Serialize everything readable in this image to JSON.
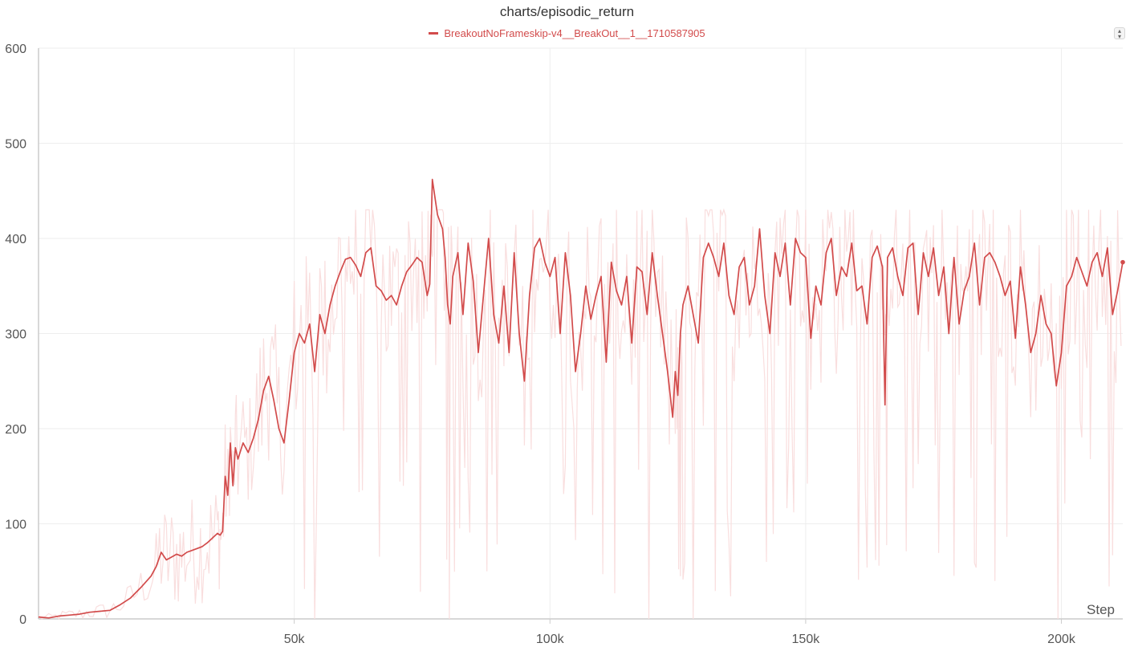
{
  "chart_data": {
    "type": "line",
    "title": "charts/episodic_return",
    "xlabel": "Step",
    "ylabel": "",
    "xlim": [
      0,
      212000
    ],
    "ylim": [
      0,
      600
    ],
    "x_ticks": [
      50000,
      100000,
      150000,
      200000
    ],
    "x_tick_labels": [
      "50k",
      "100k",
      "150k",
      "200k"
    ],
    "y_ticks": [
      0,
      100,
      200,
      300,
      400,
      500,
      600
    ],
    "y_tick_labels": [
      "0",
      "100",
      "200",
      "300",
      "400",
      "500",
      "600"
    ],
    "grid": true,
    "legend_position": "top-center",
    "series": [
      {
        "name": "BreakoutNoFrameskip-v4__BreakOut__1__1710587905",
        "color": "#d24b4b",
        "raw_color": "#f9dede",
        "smoothed": {
          "x": [
            0,
            2000,
            4000,
            6000,
            8000,
            10000,
            12000,
            14000,
            16000,
            18000,
            20000,
            22000,
            23000,
            24000,
            25000,
            26000,
            27000,
            28000,
            29000,
            30000,
            31000,
            32000,
            33000,
            34000,
            35000,
            35500,
            36000,
            36500,
            37000,
            37500,
            38000,
            38500,
            39000,
            40000,
            41000,
            42000,
            43000,
            44000,
            45000,
            46000,
            47000,
            48000,
            49000,
            50000,
            51000,
            52000,
            53000,
            54000,
            55000,
            56000,
            57000,
            58000,
            59000,
            60000,
            61000,
            62000,
            63000,
            64000,
            65000,
            66000,
            67000,
            68000,
            69000,
            70000,
            71000,
            72000,
            73000,
            74000,
            75000,
            76000,
            76500,
            77000,
            78000,
            79000,
            79500,
            80000,
            80500,
            81000,
            82000,
            83000,
            84000,
            85000,
            86000,
            87000,
            88000,
            89000,
            90000,
            91000,
            92000,
            93000,
            94000,
            95000,
            96000,
            97000,
            98000,
            99000,
            100000,
            101000,
            102000,
            103000,
            104000,
            105000,
            106000,
            107000,
            108000,
            109000,
            110000,
            111000,
            112000,
            113000,
            114000,
            115000,
            116000,
            117000,
            118000,
            119000,
            120000,
            121000,
            122000,
            123000,
            124000,
            124500,
            125000,
            125500,
            126000,
            127000,
            128000,
            129000,
            130000,
            131000,
            132000,
            133000,
            134000,
            135000,
            136000,
            137000,
            138000,
            139000,
            140000,
            141000,
            142000,
            143000,
            144000,
            145000,
            146000,
            147000,
            148000,
            149000,
            150000,
            151000,
            152000,
            153000,
            154000,
            155000,
            156000,
            157000,
            158000,
            159000,
            160000,
            161000,
            162000,
            163000,
            164000,
            165000,
            165500,
            166000,
            167000,
            168000,
            169000,
            170000,
            171000,
            172000,
            173000,
            174000,
            175000,
            176000,
            177000,
            178000,
            179000,
            180000,
            181000,
            182000,
            183000,
            184000,
            185000,
            186000,
            187000,
            188000,
            189000,
            190000,
            191000,
            192000,
            193000,
            194000,
            195000,
            196000,
            197000,
            198000,
            199000,
            200000,
            201000,
            202000,
            203000,
            204000,
            205000,
            206000,
            207000,
            208000,
            209000,
            210000,
            211000,
            212000
          ],
          "y": [
            2,
            1,
            3,
            4,
            5,
            7,
            8,
            9,
            15,
            22,
            33,
            45,
            55,
            70,
            62,
            65,
            68,
            66,
            70,
            72,
            74,
            76,
            80,
            85,
            90,
            88,
            92,
            150,
            130,
            185,
            140,
            180,
            168,
            185,
            175,
            190,
            210,
            240,
            255,
            230,
            200,
            185,
            230,
            280,
            300,
            290,
            310,
            260,
            320,
            300,
            330,
            350,
            365,
            378,
            380,
            372,
            360,
            385,
            390,
            350,
            345,
            335,
            340,
            330,
            350,
            365,
            372,
            380,
            375,
            340,
            352,
            462,
            425,
            410,
            380,
            330,
            310,
            360,
            385,
            320,
            395,
            355,
            280,
            340,
            400,
            320,
            290,
            350,
            280,
            385,
            300,
            250,
            340,
            390,
            400,
            375,
            360,
            380,
            300,
            385,
            340,
            260,
            300,
            350,
            315,
            340,
            360,
            270,
            375,
            345,
            330,
            360,
            290,
            370,
            365,
            320,
            385,
            340,
            300,
            260,
            212,
            260,
            235,
            300,
            330,
            350,
            320,
            290,
            380,
            395,
            380,
            360,
            395,
            340,
            320,
            370,
            380,
            330,
            350,
            410,
            340,
            300,
            385,
            360,
            395,
            330,
            400,
            385,
            380,
            295,
            350,
            330,
            385,
            400,
            340,
            370,
            360,
            395,
            345,
            350,
            310,
            380,
            392,
            370,
            225,
            380,
            390,
            360,
            340,
            390,
            395,
            320,
            385,
            360,
            390,
            340,
            370,
            300,
            380,
            310,
            345,
            360,
            395,
            330,
            380,
            385,
            375,
            360,
            340,
            355,
            295,
            370,
            330,
            280,
            300,
            340,
            310,
            300,
            245,
            280,
            350,
            360,
            380,
            365,
            350,
            375,
            385,
            360,
            390,
            320,
            345,
            375
          ]
        }
      }
    ]
  }
}
